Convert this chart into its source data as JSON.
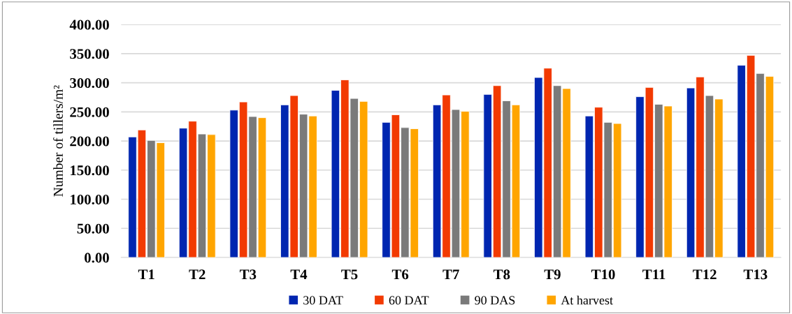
{
  "chart_data": {
    "type": "bar",
    "ylabel": "Number of tillers/m²",
    "categories": [
      "T1",
      "T2",
      "T3",
      "T4",
      "T5",
      "T6",
      "T7",
      "T8",
      "T9",
      "T10",
      "T11",
      "T12",
      "T13"
    ],
    "series": [
      {
        "name": "30 DAT",
        "color": "#0026b0",
        "values": [
          207,
          222,
          253,
          262,
          287,
          232,
          262,
          280,
          309,
          243,
          276,
          291,
          330
        ]
      },
      {
        "name": "60 DAT",
        "color": "#f23a02",
        "values": [
          219,
          234,
          267,
          278,
          305,
          245,
          279,
          295,
          325,
          258,
          292,
          310,
          347
        ]
      },
      {
        "name": "90 DAS",
        "color": "#7a7a7a",
        "values": [
          201,
          212,
          242,
          246,
          273,
          223,
          254,
          269,
          295,
          232,
          263,
          278,
          316
        ]
      },
      {
        "name": "At harvest",
        "color": "#ffa500",
        "values": [
          197,
          211,
          240,
          243,
          268,
          221,
          251,
          262,
          290,
          230,
          260,
          272,
          311
        ]
      }
    ],
    "ylim": [
      0,
      400
    ],
    "yticks": [
      {
        "value": 0,
        "label": "0.00"
      },
      {
        "value": 50,
        "label": "50.00"
      },
      {
        "value": 100,
        "label": "100.00"
      },
      {
        "value": 150,
        "label": "150.00"
      },
      {
        "value": 200,
        "label": "200.00"
      },
      {
        "value": 250,
        "label": "250.00"
      },
      {
        "value": 300,
        "label": "300.00"
      },
      {
        "value": 350,
        "label": "350.00"
      },
      {
        "value": 400,
        "label": "400.00"
      }
    ],
    "grid": "y",
    "legend": "bottom"
  }
}
